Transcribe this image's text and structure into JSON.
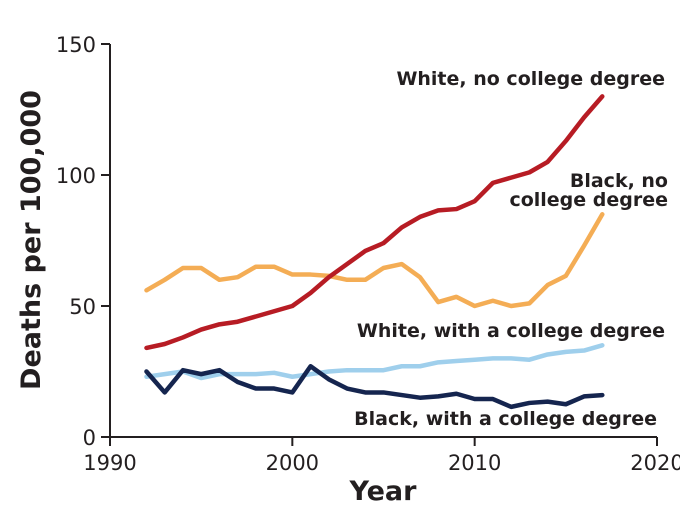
{
  "chart_data": {
    "type": "line",
    "title": "",
    "xlabel": "Year",
    "ylabel": "Deaths per 100,000",
    "xlim": [
      1990,
      2020
    ],
    "ylim": [
      0,
      150
    ],
    "xticks": [
      "1990",
      "2000",
      "2010",
      "2020"
    ],
    "yticks": [
      "0",
      "50",
      "100",
      "150"
    ],
    "grid": false,
    "legend": "inline labels",
    "x": [
      1992,
      1993,
      1994,
      1995,
      1996,
      1997,
      1998,
      1999,
      2000,
      2001,
      2002,
      2003,
      2004,
      2005,
      2006,
      2007,
      2008,
      2009,
      2010,
      2011,
      2012,
      2013,
      2014,
      2015,
      2016,
      2017
    ],
    "series": [
      {
        "name": "White, no college degree",
        "label_lines": [
          "White, no college degree"
        ],
        "color": "#b71c24",
        "values": [
          34,
          35.5,
          38,
          41,
          43,
          44,
          46,
          48,
          50,
          55,
          61,
          66,
          71,
          74,
          80,
          84,
          86.5,
          87,
          90,
          97,
          99,
          101,
          105,
          113,
          122,
          130
        ]
      },
      {
        "name": "Black, no college degree",
        "label_lines": [
          "Black, no",
          "college degree"
        ],
        "color": "#f4ad55",
        "values": [
          56,
          60,
          64.5,
          64.5,
          60,
          61,
          65,
          65,
          62,
          62,
          61.5,
          60,
          60,
          64.5,
          66,
          61,
          51.5,
          53.5,
          50,
          52,
          50,
          51,
          58,
          61.5,
          73,
          85
        ]
      },
      {
        "name": "White, with a college degree",
        "label_lines": [
          "White, with a college degree"
        ],
        "color": "#9fcfec",
        "values": [
          23,
          24,
          25,
          22.5,
          24,
          24,
          24,
          24.5,
          23,
          24,
          25,
          25.5,
          25.5,
          25.5,
          27,
          27,
          28.5,
          29,
          29.5,
          30,
          30,
          29.5,
          31.5,
          32.5,
          33,
          35
        ]
      },
      {
        "name": "Black, with a college degree",
        "label_lines": [
          "Black, with a college degree"
        ],
        "color": "#15254f",
        "values": [
          25,
          17,
          25.5,
          24,
          25.5,
          21,
          18.5,
          18.5,
          17,
          27,
          22,
          18.5,
          17,
          17,
          16,
          15,
          15.5,
          16.5,
          14.5,
          14.5,
          11.5,
          13,
          13.5,
          12.5,
          15.5,
          16
        ]
      }
    ]
  }
}
